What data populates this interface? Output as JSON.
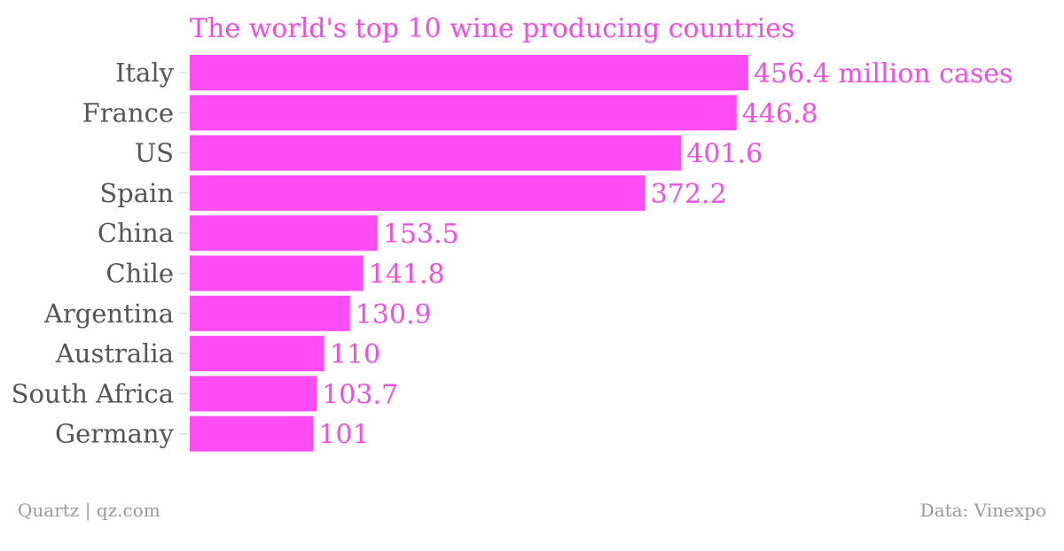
{
  "chart_data": {
    "type": "bar",
    "orientation": "horizontal",
    "title": "The world's top 10 wine producing countries",
    "categories": [
      "Italy",
      "France",
      "US",
      "Spain",
      "China",
      "Chile",
      "Argentina",
      "Australia",
      "South Africa",
      "Germany"
    ],
    "values": [
      456.4,
      446.8,
      401.6,
      372.2,
      153.5,
      141.8,
      130.9,
      110,
      103.7,
      101
    ],
    "value_labels": [
      "456.4 million cases",
      "446.8",
      "401.6",
      "372.2",
      "153.5",
      "141.8",
      "130.9",
      "110",
      "103.7",
      "101"
    ],
    "xlim": [
      0,
      456.4
    ],
    "grid": false,
    "legend": "none"
  },
  "footer": {
    "source_left": "Quartz | qz.com",
    "source_right": "Data: Vinexpo"
  },
  "colors": {
    "bar": "#ff4cf5",
    "title": "#f24ce5",
    "value_label": "#f24ce5",
    "category_label": "#555555",
    "footer": "#999999",
    "axis_tick": "#dddddd"
  }
}
